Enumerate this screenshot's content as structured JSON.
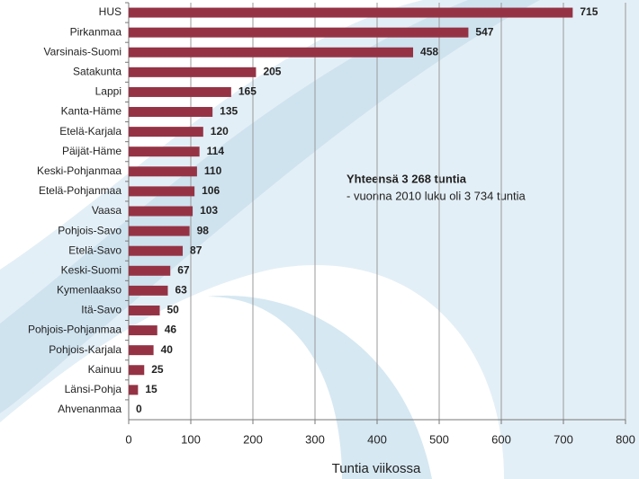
{
  "chart_data": {
    "type": "bar",
    "orientation": "horizontal",
    "categories": [
      "HUS",
      "Pirkanmaa",
      "Varsinais-Suomi",
      "Satakunta",
      "Lappi",
      "Kanta-Häme",
      "Etelä-Karjala",
      "Päijät-Häme",
      "Keski-Pohjanmaa",
      "Etelä-Pohjanmaa",
      "Vaasa",
      "Pohjois-Savo",
      "Etelä-Savo",
      "Keski-Suomi",
      "Kymenlaakso",
      "Itä-Savo",
      "Pohjois-Pohjanmaa",
      "Pohjois-Karjala",
      "Kainuu",
      "Länsi-Pohja",
      "Ahvenanmaa"
    ],
    "values": [
      715,
      547,
      458,
      205,
      165,
      135,
      120,
      114,
      110,
      106,
      103,
      98,
      87,
      67,
      63,
      50,
      46,
      40,
      25,
      15,
      0
    ],
    "color": "#953345",
    "xlim": [
      0,
      800
    ],
    "xticks": [
      0,
      100,
      200,
      300,
      400,
      500,
      600,
      700,
      800
    ],
    "grid": true,
    "xlabel": "Tuntia viikossa",
    "annotations": [
      "Yhteensä  3 268 tuntia",
      "- vuonna 2010 luku oli 3 734 tuntia"
    ]
  }
}
